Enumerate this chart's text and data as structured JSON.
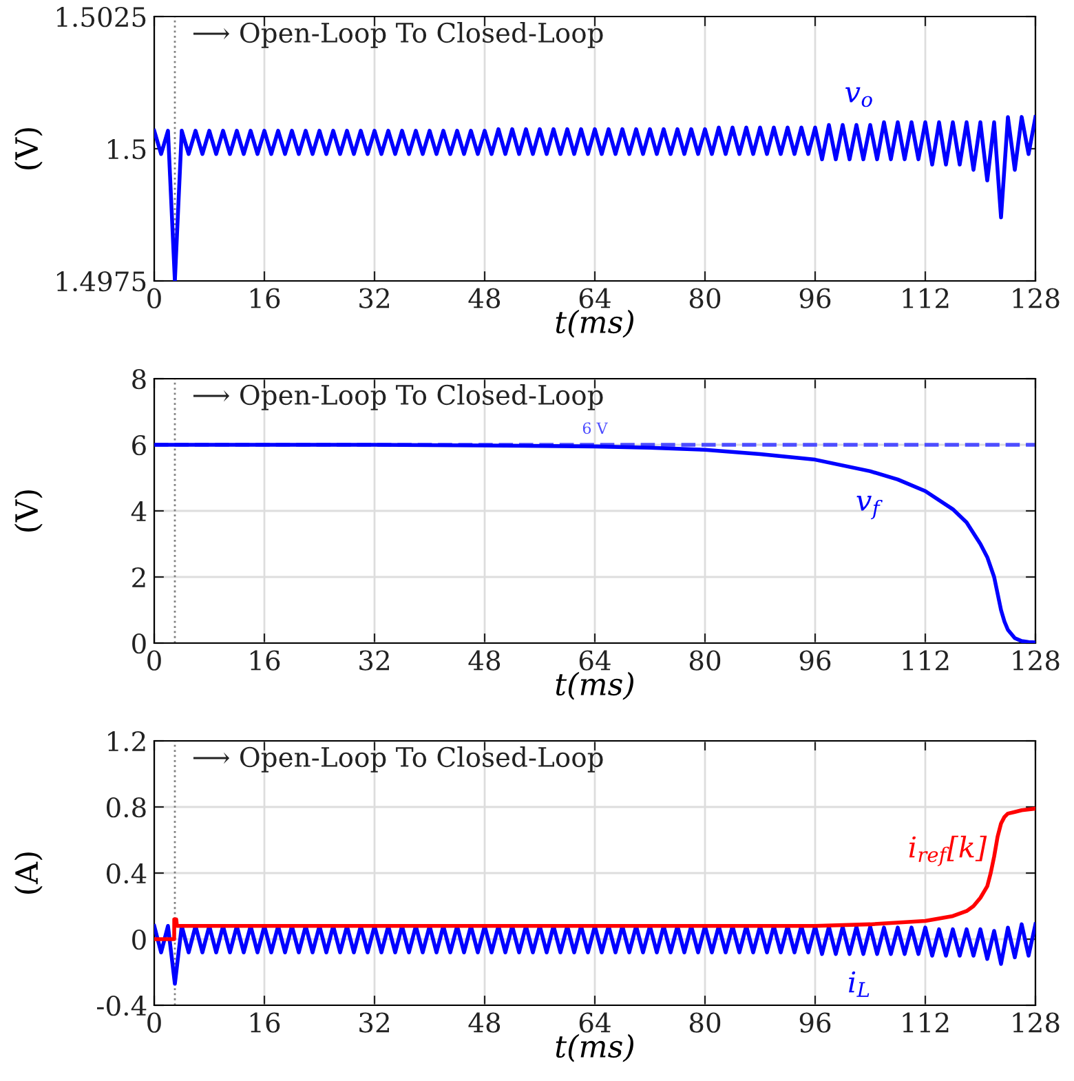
{
  "chart_data": [
    {
      "type": "line",
      "ylabel": "(V)",
      "xlabel": "t(ms)",
      "xlim": [
        0,
        128
      ],
      "xticks": [
        0,
        16,
        32,
        48,
        64,
        80,
        96,
        112,
        128
      ],
      "ylim": [
        1.4975,
        1.5025
      ],
      "yticks": [
        1.4975,
        1.5,
        1.5025
      ],
      "grid": "x",
      "legend": false,
      "ref_lines": [
        {
          "axis": "x",
          "value": 3,
          "label": "⟶ Open-Loop To Closed-Loop",
          "color": "#808080",
          "line_style": "dotted"
        }
      ],
      "series": [
        {
          "name": "v$_{o}$",
          "color": "#0000ff",
          "x": [
            0,
            1,
            2,
            3,
            4,
            5,
            6,
            7,
            8,
            9,
            10,
            11,
            12,
            13,
            14,
            15,
            16,
            17,
            18,
            19,
            20,
            21,
            22,
            23,
            24,
            25,
            26,
            27,
            28,
            29,
            30,
            31,
            32,
            33,
            34,
            35,
            36,
            37,
            38,
            39,
            40,
            41,
            42,
            43,
            44,
            45,
            46,
            47,
            48,
            49,
            50,
            51,
            52,
            53,
            54,
            55,
            56,
            57,
            58,
            59,
            60,
            61,
            62,
            63,
            64,
            65,
            66,
            67,
            68,
            69,
            70,
            71,
            72,
            73,
            74,
            75,
            76,
            77,
            78,
            79,
            80,
            81,
            82,
            83,
            84,
            85,
            86,
            87,
            88,
            89,
            90,
            91,
            92,
            93,
            94,
            95,
            96,
            97,
            98,
            99,
            100,
            101,
            102,
            103,
            104,
            105,
            106,
            107,
            108,
            109,
            110,
            111,
            112,
            113,
            114,
            115,
            116,
            117,
            118,
            119,
            120,
            121,
            122,
            123,
            124,
            125,
            126,
            127,
            128
          ],
          "values": [
            1.50034,
            1.4999,
            1.50034,
            1.4975,
            1.50034,
            1.4999,
            1.50034,
            1.4999,
            1.50034,
            1.4999,
            1.50034,
            1.4999,
            1.50034,
            1.4999,
            1.50034,
            1.4999,
            1.50034,
            1.4999,
            1.50034,
            1.4999,
            1.50034,
            1.4999,
            1.50034,
            1.4999,
            1.50034,
            1.4999,
            1.50034,
            1.4999,
            1.50034,
            1.4999,
            1.50034,
            1.4999,
            1.50034,
            1.4999,
            1.50034,
            1.4999,
            1.50034,
            1.4999,
            1.50034,
            1.4999,
            1.50034,
            1.4999,
            1.50034,
            1.4999,
            1.50034,
            1.4999,
            1.50034,
            1.4999,
            1.50034,
            1.4999,
            1.50037,
            1.4999,
            1.50037,
            1.4999,
            1.50037,
            1.4999,
            1.50037,
            1.4999,
            1.50037,
            1.4999,
            1.50037,
            1.4999,
            1.50037,
            1.4999,
            1.50037,
            1.4999,
            1.50037,
            1.4999,
            1.50037,
            1.4999,
            1.50037,
            1.4999,
            1.50037,
            1.4999,
            1.50037,
            1.4999,
            1.50037,
            1.4999,
            1.50037,
            1.4999,
            1.50037,
            1.4999,
            1.5004,
            1.4999,
            1.5004,
            1.4999,
            1.5004,
            1.4999,
            1.5004,
            1.4999,
            1.5004,
            1.4999,
            1.5004,
            1.4999,
            1.5004,
            1.4999,
            1.5004,
            1.4998,
            1.50045,
            1.4998,
            1.50045,
            1.4998,
            1.50045,
            1.4998,
            1.50045,
            1.4998,
            1.5005,
            1.4998,
            1.5005,
            1.4998,
            1.5005,
            1.4998,
            1.5005,
            1.4997,
            1.5005,
            1.4997,
            1.5005,
            1.4997,
            1.5005,
            1.4996,
            1.5005,
            1.4994,
            1.5005,
            1.4987,
            1.5006,
            1.4996,
            1.5006,
            1.4999,
            1.5006
          ]
        }
      ]
    },
    {
      "type": "line",
      "ylabel": "(V)",
      "xlabel": "t(ms)",
      "xlim": [
        0,
        128
      ],
      "xticks": [
        0,
        16,
        32,
        48,
        64,
        80,
        96,
        112,
        128
      ],
      "ylim": [
        0,
        8
      ],
      "yticks": [
        0,
        2,
        4,
        6,
        8
      ],
      "grid": true,
      "legend": false,
      "ref_lines": [
        {
          "axis": "x",
          "value": 3,
          "label": "⟶ Open-Loop To Closed-Loop",
          "color": "#808080",
          "line_style": "dotted"
        },
        {
          "axis": "y",
          "value": 6,
          "label": "6 V",
          "color": "#4d4dff",
          "line_style": "dashed"
        }
      ],
      "series": [
        {
          "name": "v$_{f}$",
          "color": "#0000ff",
          "x": [
            0,
            16,
            32,
            48,
            64,
            72,
            80,
            88,
            96,
            104,
            108,
            112,
            116,
            118,
            120,
            121,
            122,
            122.5,
            123,
            123.5,
            124,
            125,
            126,
            127,
            128
          ],
          "values": [
            6,
            6,
            6,
            5.98,
            5.95,
            5.91,
            5.85,
            5.72,
            5.55,
            5.2,
            4.95,
            4.6,
            4.05,
            3.65,
            3.0,
            2.6,
            2.0,
            1.5,
            1.0,
            0.65,
            0.4,
            0.15,
            0.06,
            0.03,
            0.02
          ]
        }
      ]
    },
    {
      "type": "line",
      "ylabel": "(A)",
      "xlabel": "t(ms)",
      "xlim": [
        0,
        128
      ],
      "xticks": [
        0,
        16,
        32,
        48,
        64,
        80,
        96,
        112,
        128
      ],
      "ylim": [
        -0.4,
        1.2
      ],
      "yticks": [
        -0.4,
        0,
        0.4,
        0.8,
        1.2
      ],
      "grid": true,
      "legend": false,
      "ref_lines": [
        {
          "axis": "x",
          "value": 3,
          "label": "⟶ Open-Loop To Closed-Loop",
          "color": "#808080",
          "line_style": "dotted"
        }
      ],
      "series": [
        {
          "name": "i$_{L}$",
          "color": "#0000ff",
          "x": [
            0,
            1,
            2,
            3,
            4,
            5,
            6,
            7,
            8,
            9,
            10,
            11,
            12,
            13,
            14,
            15,
            16,
            17,
            18,
            19,
            20,
            21,
            22,
            23,
            24,
            25,
            26,
            27,
            28,
            29,
            30,
            31,
            32,
            33,
            34,
            35,
            36,
            37,
            38,
            39,
            40,
            41,
            42,
            43,
            44,
            45,
            46,
            47,
            48,
            49,
            50,
            51,
            52,
            53,
            54,
            55,
            56,
            57,
            58,
            59,
            60,
            61,
            62,
            63,
            64,
            65,
            66,
            67,
            68,
            69,
            70,
            71,
            72,
            73,
            74,
            75,
            76,
            77,
            78,
            79,
            80,
            81,
            82,
            83,
            84,
            85,
            86,
            87,
            88,
            89,
            90,
            91,
            92,
            93,
            94,
            95,
            96,
            97,
            98,
            99,
            100,
            101,
            102,
            103,
            104,
            105,
            106,
            107,
            108,
            109,
            110,
            111,
            112,
            113,
            114,
            115,
            116,
            117,
            118,
            119,
            120,
            121,
            122,
            123,
            124,
            125,
            126,
            127,
            128
          ],
          "values": [
            0.08,
            -0.08,
            0.08,
            -0.27,
            0.08,
            -0.08,
            0.08,
            -0.08,
            0.08,
            -0.08,
            0.08,
            -0.08,
            0.08,
            -0.08,
            0.08,
            -0.08,
            0.08,
            -0.08,
            0.08,
            -0.08,
            0.08,
            -0.08,
            0.08,
            -0.08,
            0.08,
            -0.08,
            0.08,
            -0.08,
            0.08,
            -0.08,
            0.08,
            -0.08,
            0.08,
            -0.08,
            0.08,
            -0.08,
            0.08,
            -0.08,
            0.08,
            -0.08,
            0.08,
            -0.08,
            0.08,
            -0.08,
            0.08,
            -0.08,
            0.08,
            -0.08,
            0.08,
            -0.08,
            0.08,
            -0.08,
            0.08,
            -0.08,
            0.08,
            -0.08,
            0.08,
            -0.08,
            0.08,
            -0.08,
            0.08,
            -0.08,
            0.08,
            -0.08,
            0.08,
            -0.08,
            0.08,
            -0.08,
            0.08,
            -0.08,
            0.08,
            -0.08,
            0.08,
            -0.08,
            0.08,
            -0.08,
            0.08,
            -0.08,
            0.08,
            -0.08,
            0.08,
            -0.08,
            0.08,
            -0.08,
            0.08,
            -0.08,
            0.08,
            -0.08,
            0.08,
            -0.08,
            0.08,
            -0.08,
            0.08,
            -0.08,
            0.08,
            -0.08,
            0.08,
            -0.09,
            0.075,
            -0.09,
            0.075,
            -0.09,
            0.075,
            -0.09,
            0.075,
            -0.09,
            0.07,
            -0.09,
            0.07,
            -0.09,
            0.07,
            -0.09,
            0.07,
            -0.1,
            0.06,
            -0.1,
            0.06,
            -0.1,
            0.06,
            -0.1,
            0.06,
            -0.12,
            0.05,
            -0.15,
            0.07,
            -0.11,
            0.09,
            -0.1,
            0.09
          ]
        },
        {
          "name": "i$_{ref}$[k]",
          "color": "#ff0000",
          "x": [
            0,
            2.9,
            2.91,
            3.2,
            3.3,
            48,
            96,
            104,
            112,
            116,
            118,
            119,
            120,
            121,
            121.5,
            122,
            122.5,
            123,
            123.5,
            124,
            125,
            126,
            128
          ],
          "values": [
            0,
            0,
            0.12,
            0.12,
            0.08,
            0.08,
            0.08,
            0.09,
            0.11,
            0.14,
            0.17,
            0.2,
            0.25,
            0.32,
            0.4,
            0.5,
            0.62,
            0.7,
            0.74,
            0.76,
            0.77,
            0.78,
            0.79
          ]
        }
      ]
    }
  ]
}
